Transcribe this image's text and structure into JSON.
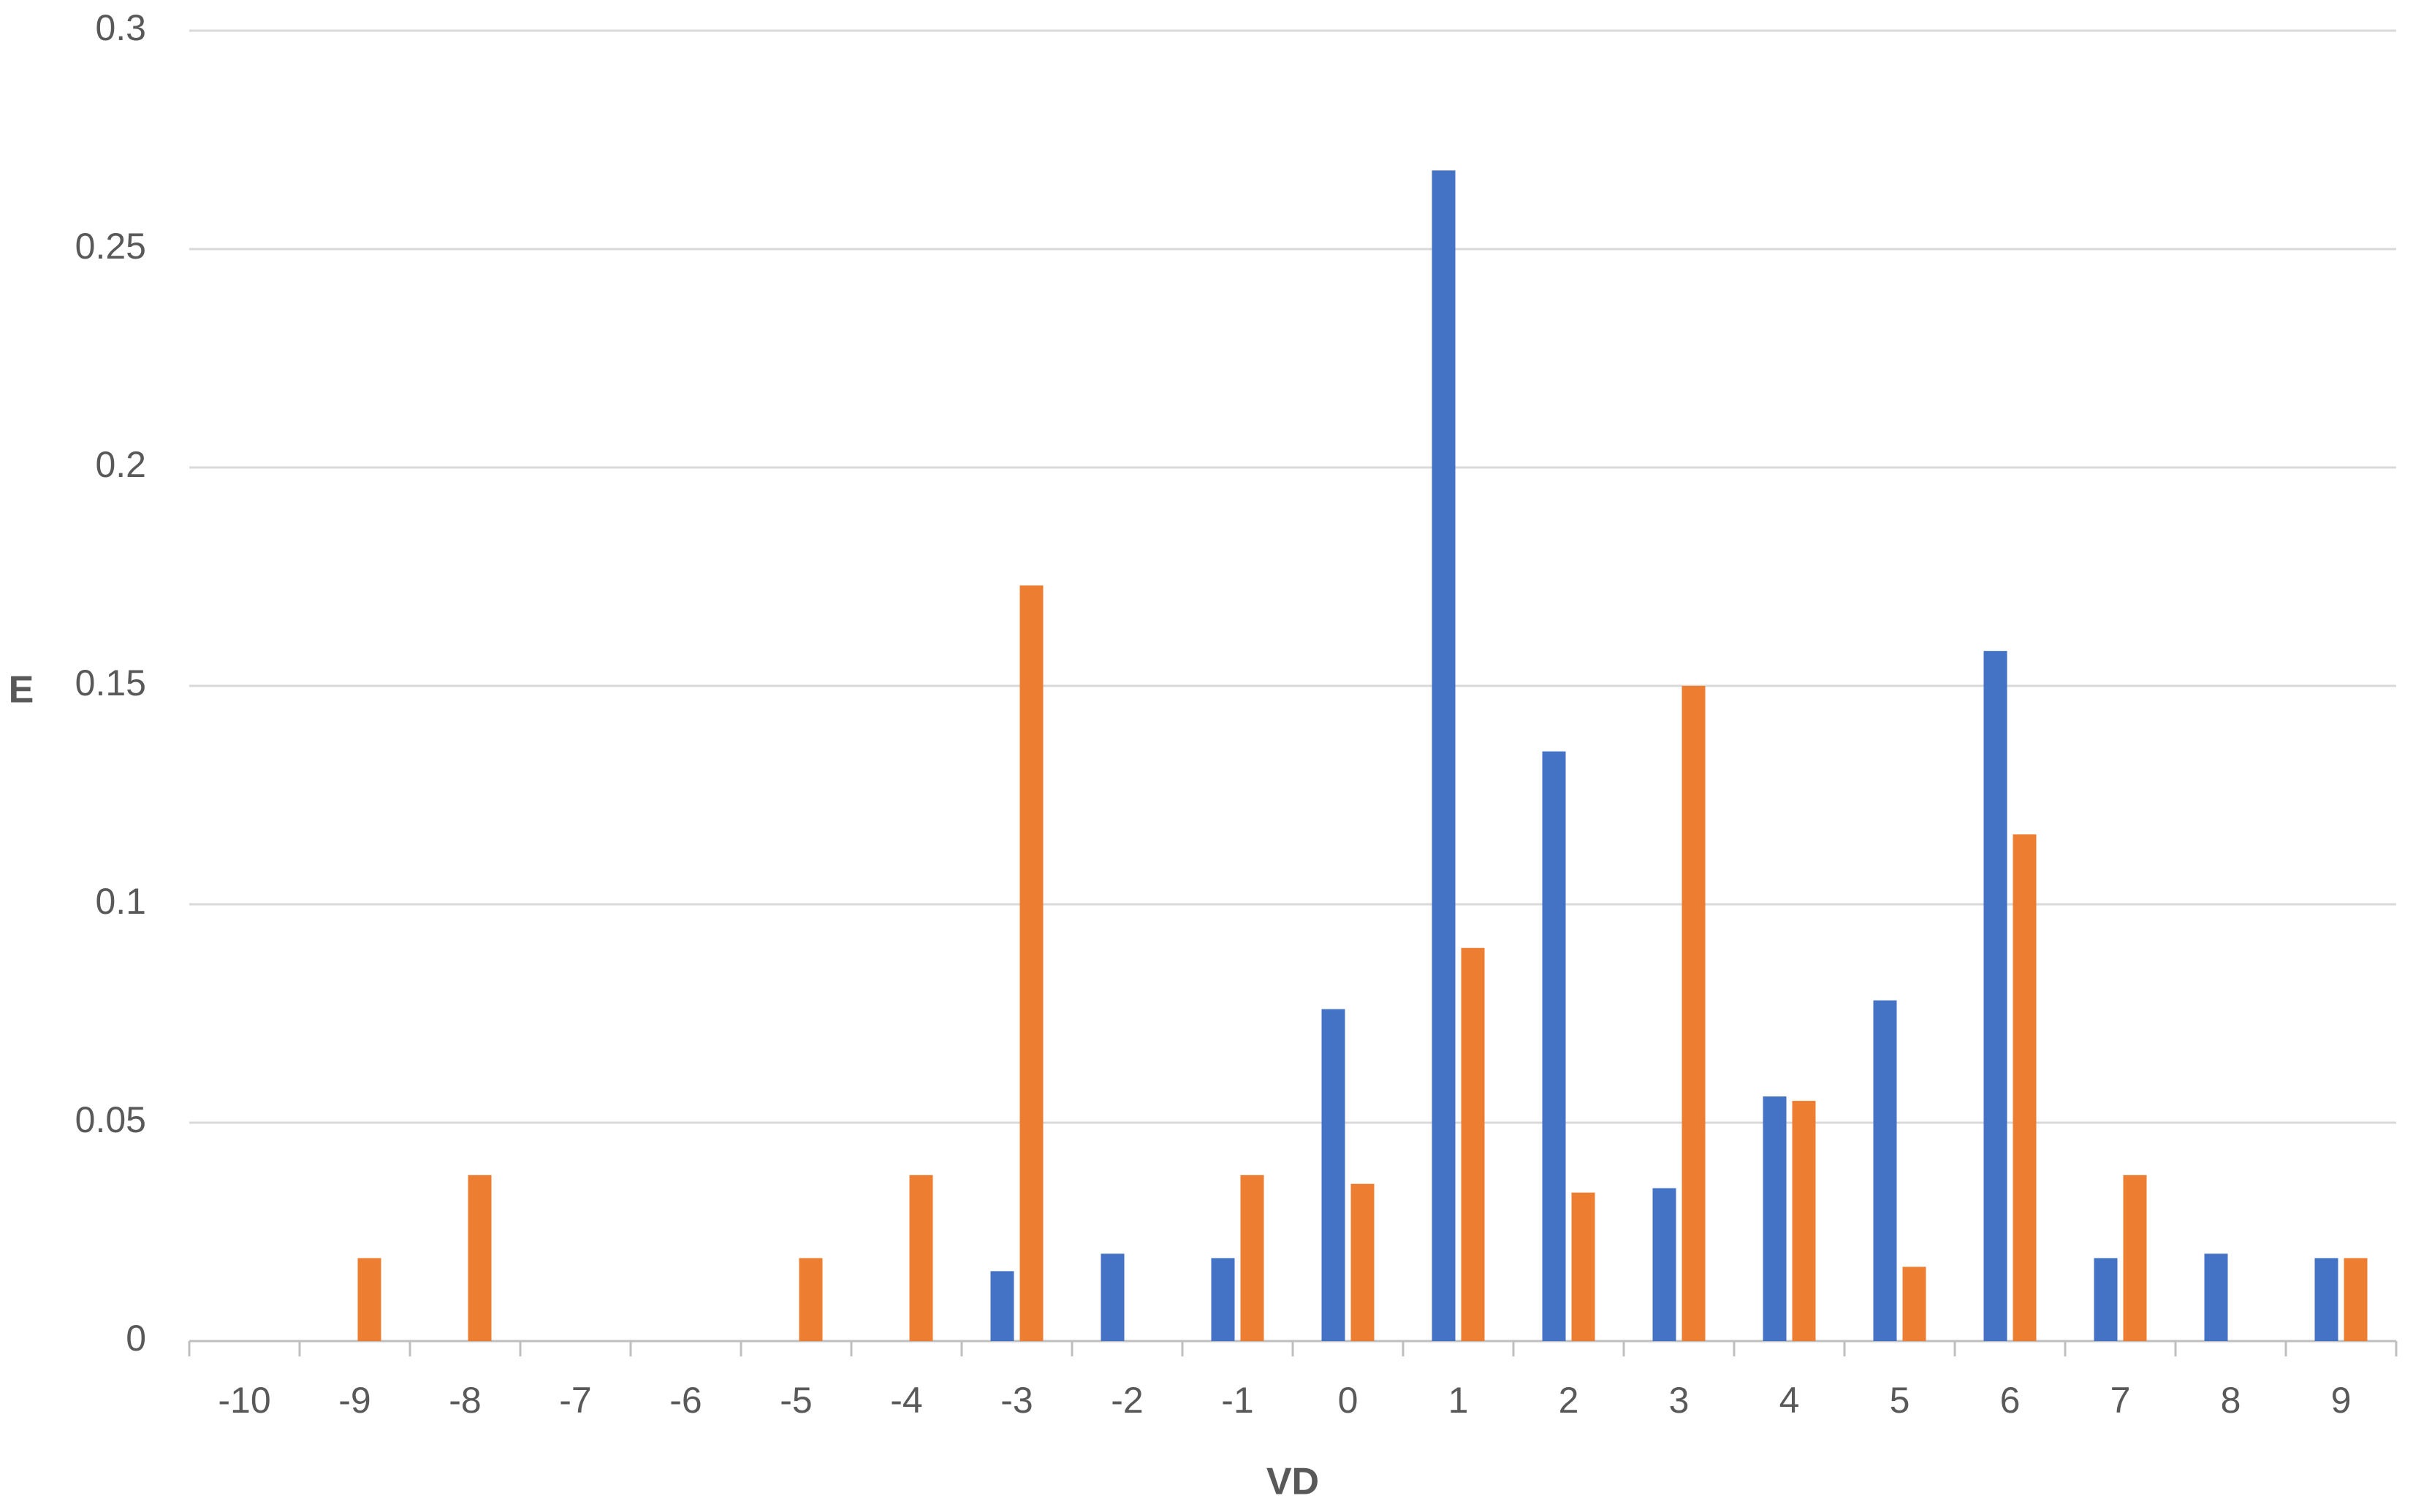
{
  "chart_data": {
    "type": "bar",
    "x_label": "VD",
    "y_label": "E",
    "categories": [
      "-10",
      "-9",
      "-8",
      "-7",
      "-6",
      "-5",
      "-4",
      "-3",
      "-2",
      "-1",
      "0",
      "1",
      "2",
      "3",
      "4",
      "5",
      "6",
      "7",
      "8",
      "9"
    ],
    "series": [
      {
        "color": "#4472c4",
        "values": [
          null,
          null,
          null,
          null,
          null,
          null,
          null,
          0.016,
          0.02,
          0.019,
          0.076,
          0.268,
          0.135,
          0.035,
          0.056,
          0.078,
          0.158,
          0.019,
          0.02,
          0.019
        ]
      },
      {
        "color": "#ed7d31",
        "values": [
          null,
          0.019,
          0.038,
          null,
          null,
          0.019,
          0.038,
          0.173,
          null,
          0.038,
          0.036,
          0.09,
          0.034,
          0.15,
          0.055,
          0.017,
          0.116,
          0.038,
          null,
          0.019
        ]
      }
    ],
    "ylim": [
      0,
      0.3
    ],
    "yticks": [
      0,
      0.05,
      0.1,
      0.15,
      0.2,
      0.25,
      0.3
    ],
    "grid": true
  }
}
